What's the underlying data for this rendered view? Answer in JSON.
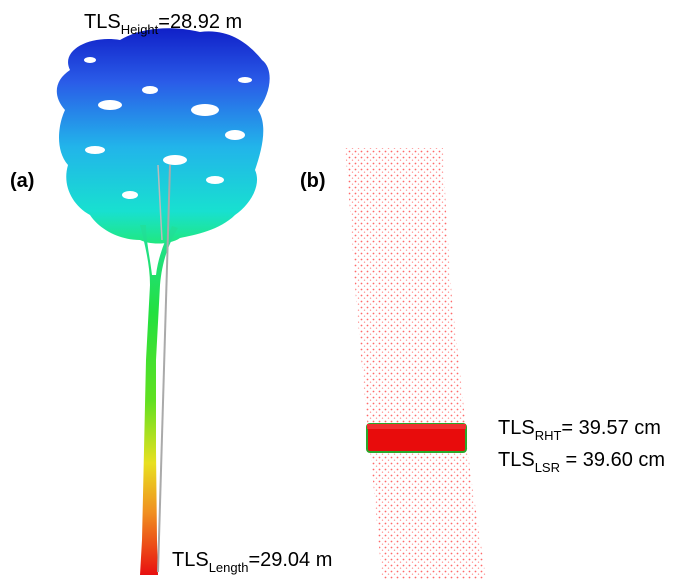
{
  "panel_a": {
    "tag": "(a)",
    "height_label": {
      "prefix": "TLS",
      "sub": "Height",
      "value": "=28.92 m"
    },
    "length_label": {
      "prefix": "TLS",
      "sub": "Length",
      "value": "=29.04 m"
    }
  },
  "panel_b": {
    "tag": "(b)",
    "rht_label": {
      "prefix": "TLS",
      "sub": "RHT",
      "value": "= 39.57 cm"
    },
    "lsr_label": {
      "prefix": "TLS",
      "sub": "LSR",
      "value": " = 39.60 cm"
    }
  },
  "colors": {
    "crown_top": "#1a2fd6",
    "crown_mid": "#18c8e6",
    "trunk_mid": "#22d84a",
    "trunk_low": "#f0d020",
    "trunk_base": "#e81818",
    "stem_points": "#ff7a7a",
    "measure_band": "#e80c0c",
    "measure_outline": "#2aa82a",
    "length_line": "#aaaaaa"
  }
}
